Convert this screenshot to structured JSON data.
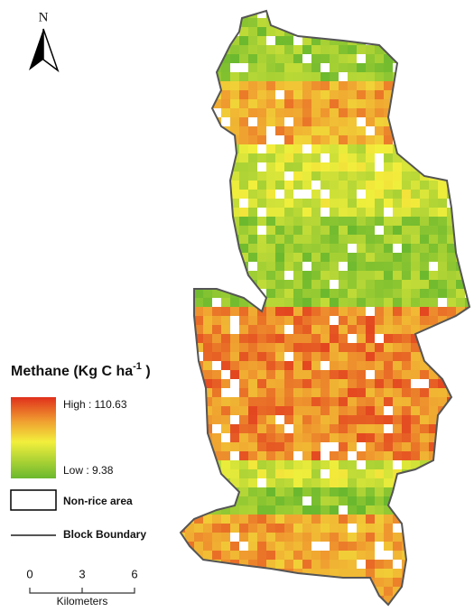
{
  "north_arrow": {
    "label": "N"
  },
  "legend": {
    "title": "Methane  (Kg C ha",
    "title_superscript": "-1",
    "title_end": " )",
    "high_label": "High : 110.63",
    "low_label": "Low : 9.38",
    "non_rice": "Non-rice area",
    "boundary": "Block Boundary"
  },
  "scale_bar": {
    "ticks": [
      "0",
      "3",
      "6"
    ],
    "unit": "Kilometers"
  }
}
